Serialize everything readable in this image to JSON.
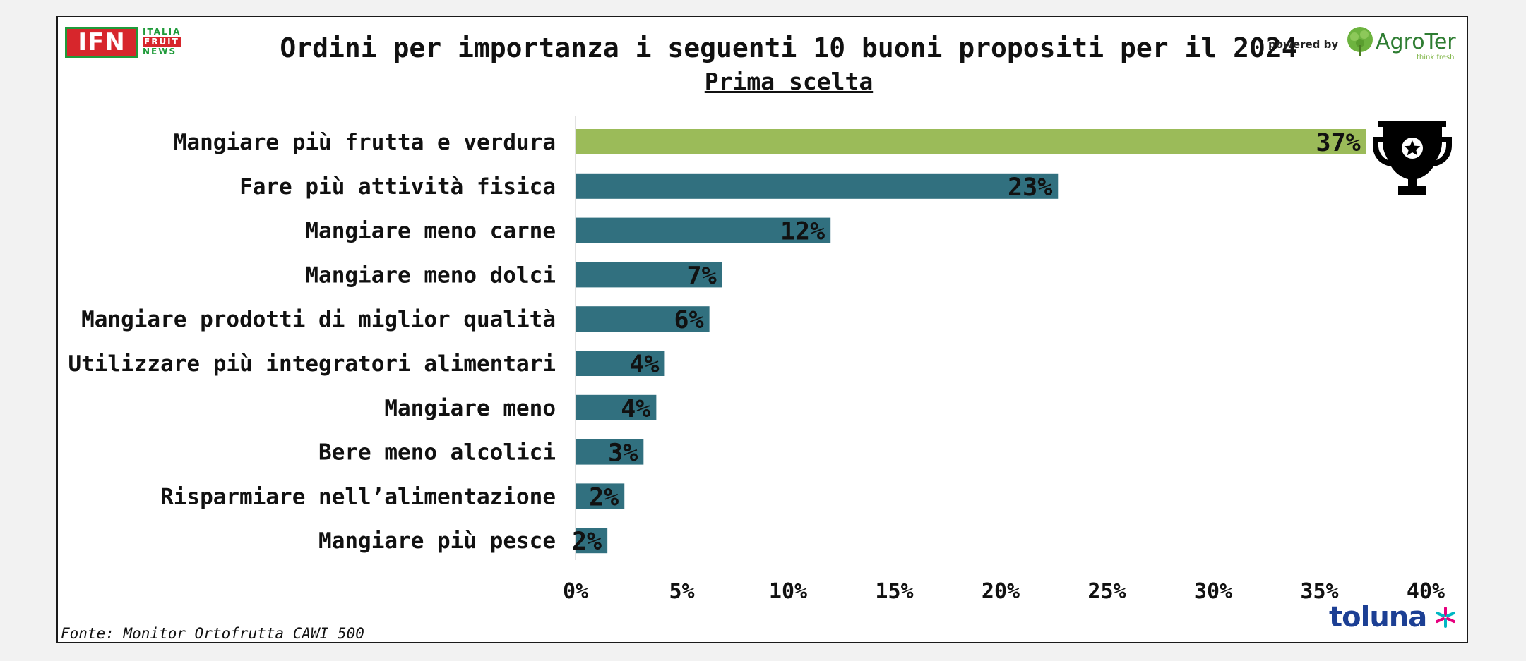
{
  "header": {
    "title": "Ordini per importanza i seguenti 10 buoni propositi per il 2024",
    "subtitle": "Prima scelta",
    "powered_by": "powered by"
  },
  "logos": {
    "ifn_mark": "IFN",
    "ifn_italia": "ITALIA",
    "ifn_fruit": "FRUIT",
    "ifn_news": "NEWS",
    "agroter_name": "AgroTer",
    "agroter_tagline": "think fresh",
    "toluna_name": "toluna"
  },
  "source": "Fonte: Monitor Ortofrutta CAWI 500",
  "colors": {
    "highlight_bar": "#9bbb59",
    "bar": "#31707f",
    "text": "#111111",
    "trophy": "#000000"
  },
  "icons": [
    "trophy-icon",
    "agroter-tree-icon",
    "toluna-star-icon"
  ],
  "chart_data": {
    "type": "bar",
    "orientation": "horizontal",
    "categories": [
      "Mangiare più frutta e verdura",
      "Fare più attività fisica",
      "Mangiare meno carne",
      "Mangiare meno dolci",
      "Mangiare prodotti di miglior qualità",
      "Utilizzare più integratori alimentari",
      "Mangiare meno",
      "Bere meno alcolici",
      "Risparmiare nell’alimentazione",
      "Mangiare più pesce"
    ],
    "values": [
      37.2,
      22.7,
      12.0,
      6.9,
      6.3,
      4.2,
      3.8,
      3.2,
      2.3,
      1.5
    ],
    "data_labels": [
      "37%",
      "23%",
      "12%",
      "7%",
      "6%",
      "4%",
      "4%",
      "3%",
      "2%",
      "2%"
    ],
    "highlight_index": 0,
    "xlim": [
      0,
      40
    ],
    "xticks": [
      0,
      5,
      10,
      15,
      20,
      25,
      30,
      35,
      40
    ],
    "xtick_labels": [
      "0%",
      "5%",
      "10%",
      "15%",
      "20%",
      "25%",
      "30%",
      "35%",
      "40%"
    ],
    "title": "Ordini per importanza i seguenti 10 buoni propositi per il 2024",
    "subtitle": "Prima scelta",
    "xlabel": "",
    "ylabel": "",
    "grid": false,
    "legend": "none"
  }
}
